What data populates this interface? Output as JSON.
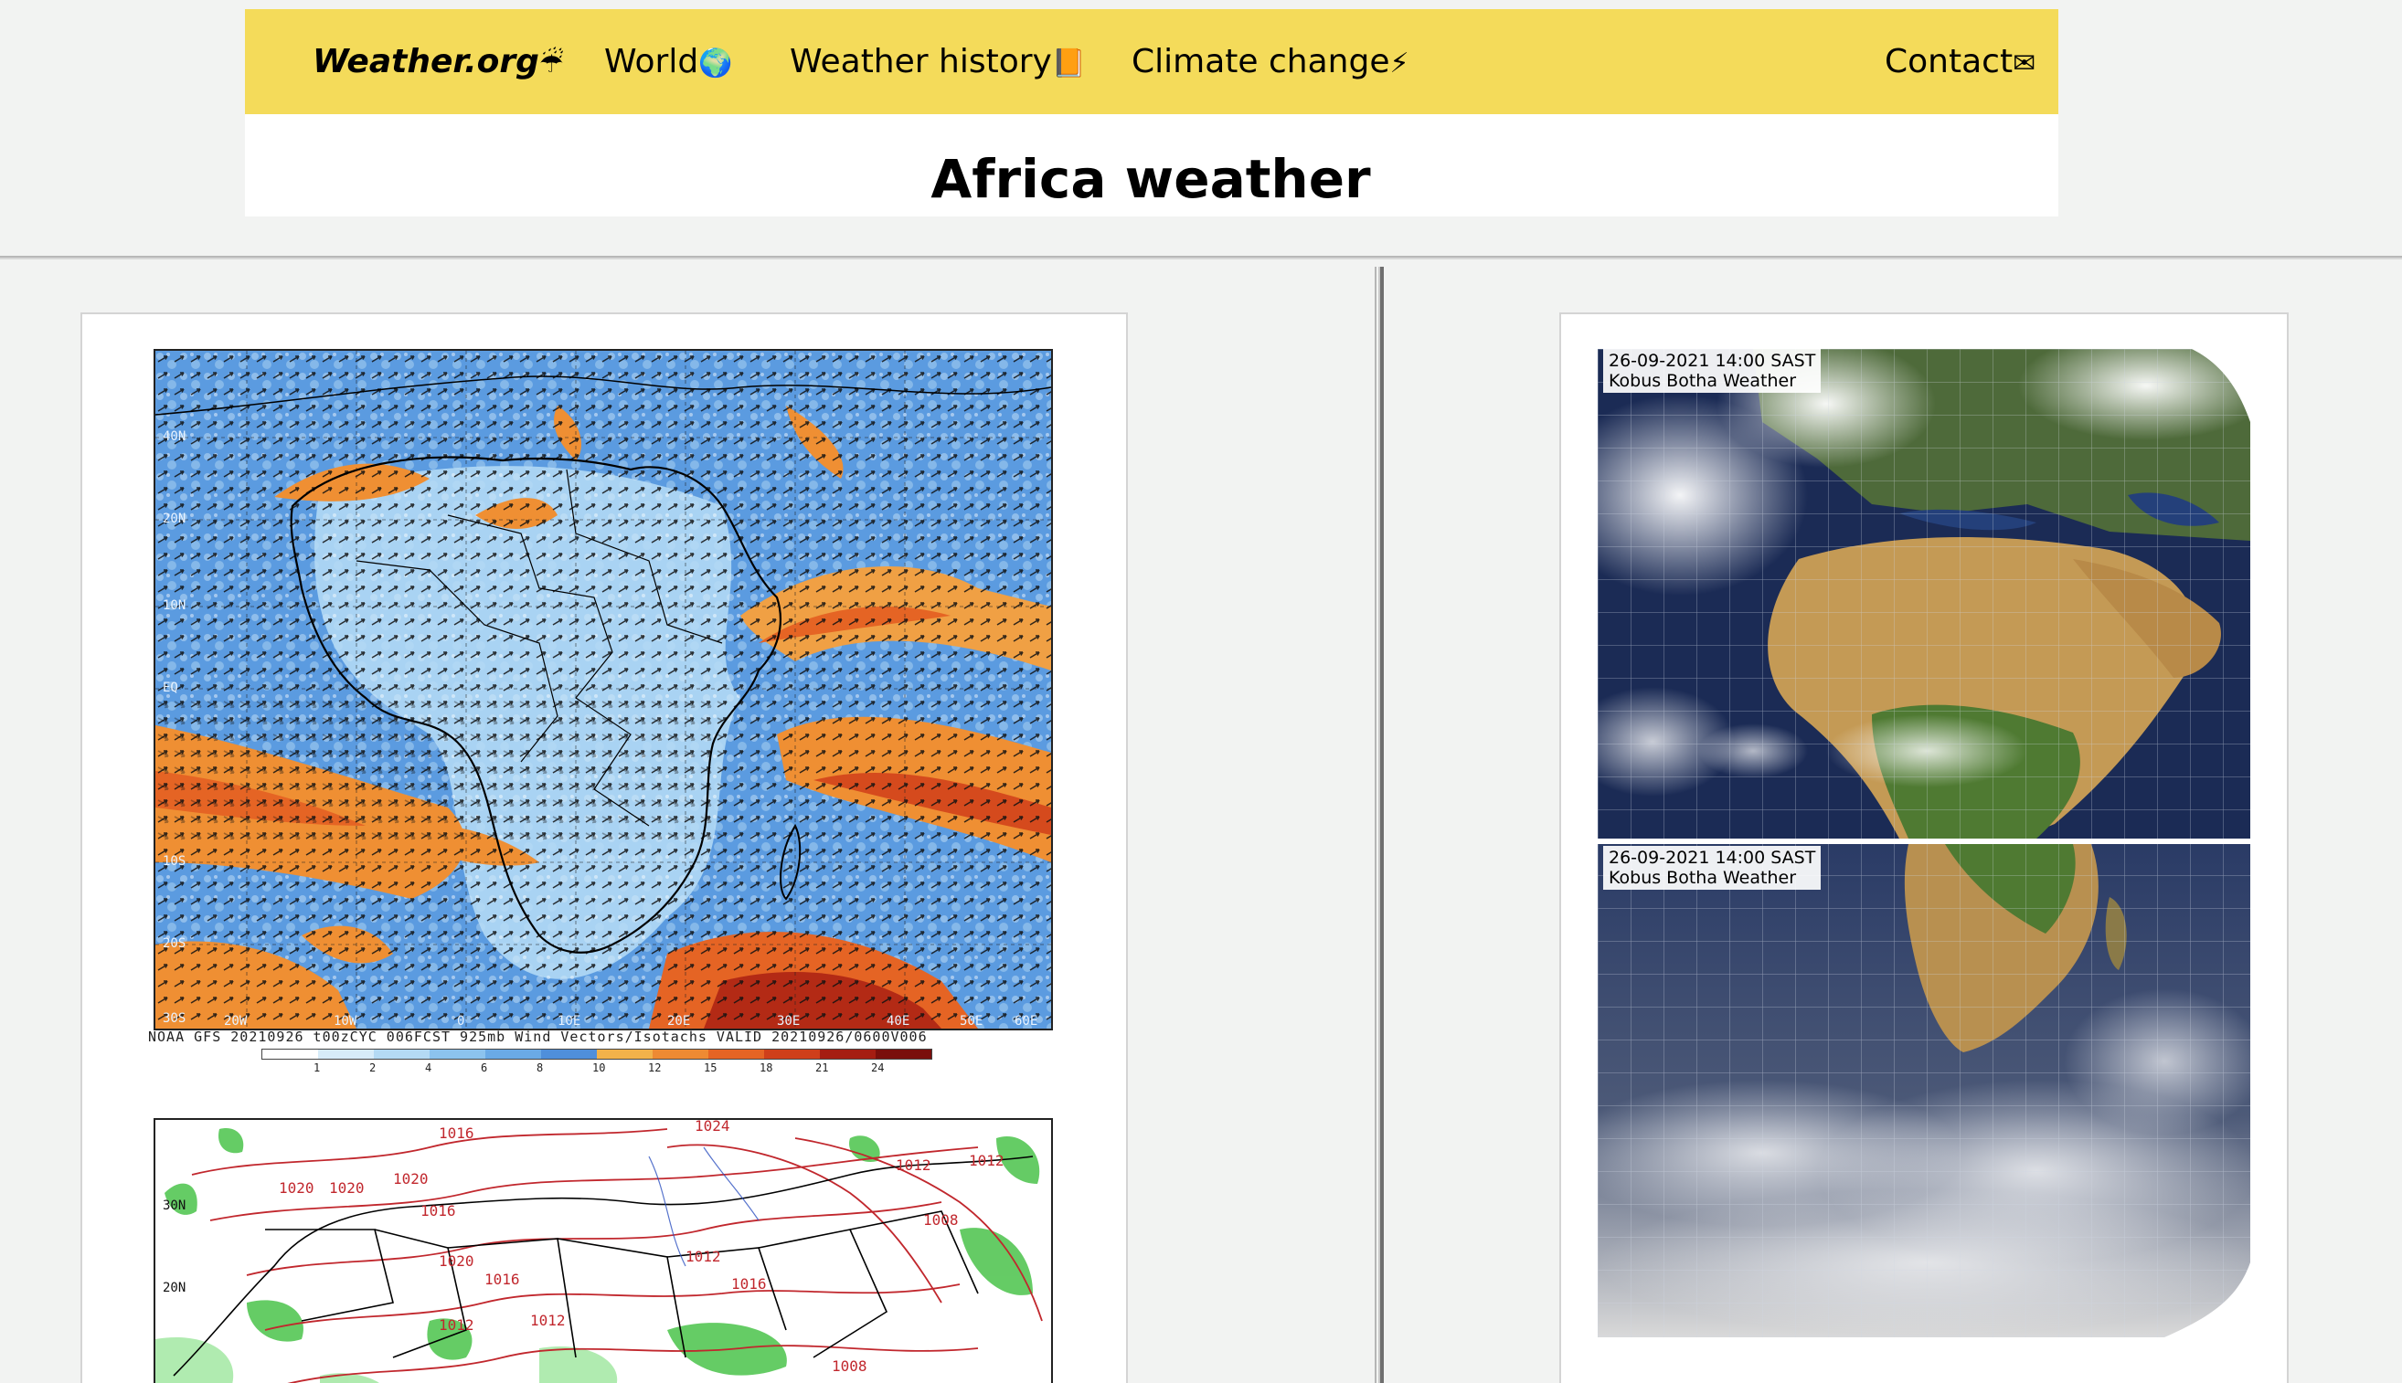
{
  "nav": {
    "brand": "Weather.org",
    "brand_emoji": "☔",
    "world": "World",
    "world_emoji": "🌍",
    "history": "Weather history",
    "history_emoji": "📙",
    "climate": "Climate change",
    "climate_emoji": "⚡",
    "contact": "Contact",
    "contact_emoji": "✉"
  },
  "page": {
    "title": "Africa weather"
  },
  "wind_map": {
    "lat_labels": [
      "40N",
      "20N",
      "10N",
      "EQ",
      "10S",
      "20S",
      "30S"
    ],
    "lon_labels": [
      "20W",
      "10W",
      "0",
      "10E",
      "20E",
      "30E",
      "40E",
      "50E",
      "60E"
    ],
    "caption": "NOAA GFS 20210926 t00zCYC 006FCST 925mb Wind Vectors/Isotachs   VALID 20210926/0600V006",
    "colorbar_labels": [
      "1",
      "2",
      "4",
      "6",
      "8",
      "10",
      "12",
      "15",
      "18",
      "21",
      "24"
    ],
    "colorbar_colors": [
      "#ffffff",
      "#d7ecf9",
      "#b4daf4",
      "#8cc3ee",
      "#6aaae6",
      "#4f8fdb",
      "#f2b24a",
      "#ee8a33",
      "#e56424",
      "#cf3f1a",
      "#a51d12",
      "#7a0f0c"
    ]
  },
  "pressure_map": {
    "isobars": [
      "1016",
      "1024",
      "1020",
      "1020",
      "1020",
      "1016",
      "1012",
      "1012",
      "1008",
      "1012",
      "1016",
      "1020",
      "1012",
      "1008",
      "1012",
      "1016"
    ],
    "lat_labels": [
      "30N",
      "20N"
    ]
  },
  "satellite": {
    "timestamp": "26-09-2021 14:00 SAST",
    "credit": "Kobus Botha Weather",
    "timestamp_2": "26-09-2021 14:00 SAST",
    "credit_2": "Kobus Botha Weather"
  }
}
